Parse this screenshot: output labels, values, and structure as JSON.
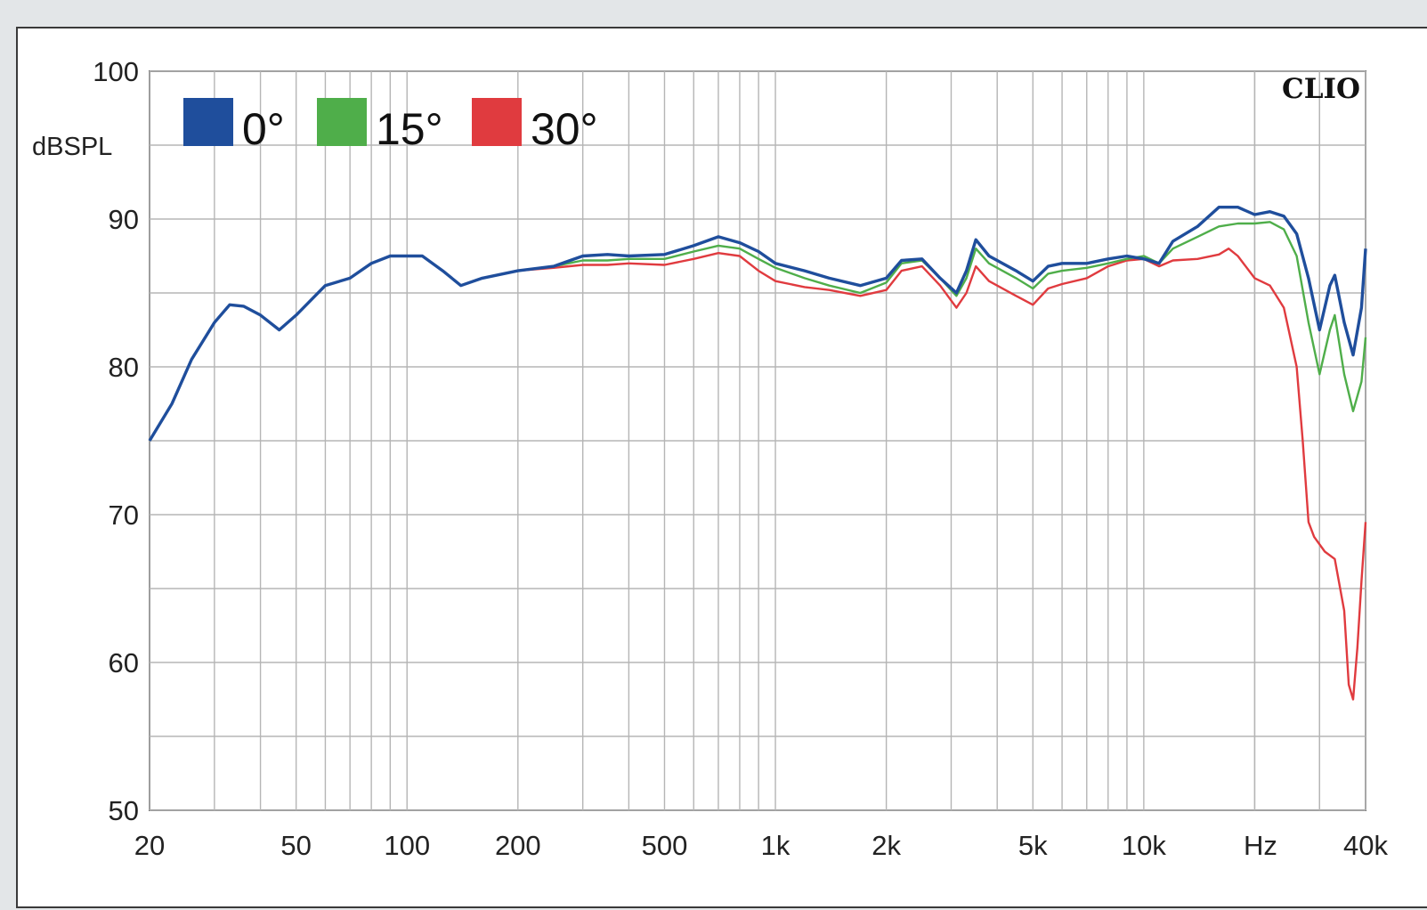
{
  "chart_data": {
    "type": "line",
    "brand": "CLIO",
    "ylabel": "dBSPL",
    "xunit": "Hz",
    "xscale": "log",
    "xlim": [
      20,
      40000
    ],
    "ylim": [
      50,
      100
    ],
    "grid": true,
    "legend_position": "top-left",
    "yticks": [
      {
        "value": 100,
        "label": "100"
      },
      {
        "value": 90,
        "label": "90"
      },
      {
        "value": 80,
        "label": "80"
      },
      {
        "value": 70,
        "label": "70"
      },
      {
        "value": 60,
        "label": "60"
      },
      {
        "value": 50,
        "label": "50"
      }
    ],
    "xticks": [
      {
        "value": 20,
        "label": "20"
      },
      {
        "value": 50,
        "label": "50"
      },
      {
        "value": 100,
        "label": "100"
      },
      {
        "value": 200,
        "label": "200"
      },
      {
        "value": 500,
        "label": "500"
      },
      {
        "value": 1000,
        "label": "1k"
      },
      {
        "value": 2000,
        "label": "2k"
      },
      {
        "value": 5000,
        "label": "5k"
      },
      {
        "value": 10000,
        "label": "10k"
      },
      {
        "value": 40000,
        "label": "40k"
      }
    ],
    "series": [
      {
        "name": "0°",
        "color": "#1f4e9c",
        "points": [
          [
            20,
            75
          ],
          [
            23,
            77.5
          ],
          [
            26,
            80.5
          ],
          [
            30,
            83
          ],
          [
            33,
            84.2
          ],
          [
            36,
            84.1
          ],
          [
            40,
            83.5
          ],
          [
            45,
            82.5
          ],
          [
            50,
            83.5
          ],
          [
            60,
            85.5
          ],
          [
            70,
            86
          ],
          [
            80,
            87
          ],
          [
            90,
            87.5
          ],
          [
            100,
            87.5
          ],
          [
            110,
            87.5
          ],
          [
            125,
            86.5
          ],
          [
            140,
            85.5
          ],
          [
            160,
            86
          ],
          [
            200,
            86.5
          ],
          [
            250,
            86.8
          ],
          [
            300,
            87.5
          ],
          [
            350,
            87.6
          ],
          [
            400,
            87.5
          ],
          [
            500,
            87.6
          ],
          [
            600,
            88.2
          ],
          [
            700,
            88.8
          ],
          [
            800,
            88.4
          ],
          [
            900,
            87.8
          ],
          [
            1000,
            87.0
          ],
          [
            1200,
            86.5
          ],
          [
            1400,
            86.0
          ],
          [
            1700,
            85.5
          ],
          [
            2000,
            86.0
          ],
          [
            2200,
            87.2
          ],
          [
            2500,
            87.3
          ],
          [
            2800,
            86.0
          ],
          [
            3100,
            85.0
          ],
          [
            3300,
            86.5
          ],
          [
            3500,
            88.6
          ],
          [
            3800,
            87.5
          ],
          [
            4500,
            86.5
          ],
          [
            5000,
            85.8
          ],
          [
            5500,
            86.8
          ],
          [
            6000,
            87.0
          ],
          [
            7000,
            87.0
          ],
          [
            8000,
            87.3
          ],
          [
            9000,
            87.5
          ],
          [
            10000,
            87.3
          ],
          [
            11000,
            87.0
          ],
          [
            12000,
            88.5
          ],
          [
            14000,
            89.5
          ],
          [
            16000,
            90.8
          ],
          [
            18000,
            90.8
          ],
          [
            20000,
            90.3
          ],
          [
            22000,
            90.5
          ],
          [
            24000,
            90.2
          ],
          [
            26000,
            89.0
          ],
          [
            28000,
            86.0
          ],
          [
            30000,
            82.5
          ],
          [
            32000,
            85.5
          ],
          [
            33000,
            86.2
          ],
          [
            35000,
            83.0
          ],
          [
            37000,
            80.8
          ],
          [
            39000,
            84.0
          ],
          [
            40000,
            88.0
          ]
        ]
      },
      {
        "name": "15°",
        "color": "#4fae4a",
        "points": [
          [
            20,
            75
          ],
          [
            23,
            77.5
          ],
          [
            26,
            80.5
          ],
          [
            30,
            83
          ],
          [
            33,
            84.2
          ],
          [
            36,
            84.1
          ],
          [
            40,
            83.5
          ],
          [
            45,
            82.5
          ],
          [
            50,
            83.5
          ],
          [
            60,
            85.5
          ],
          [
            70,
            86
          ],
          [
            80,
            87
          ],
          [
            90,
            87.5
          ],
          [
            100,
            87.5
          ],
          [
            110,
            87.5
          ],
          [
            125,
            86.5
          ],
          [
            140,
            85.5
          ],
          [
            160,
            86
          ],
          [
            200,
            86.5
          ],
          [
            250,
            86.8
          ],
          [
            300,
            87.2
          ],
          [
            350,
            87.2
          ],
          [
            400,
            87.3
          ],
          [
            500,
            87.3
          ],
          [
            600,
            87.8
          ],
          [
            700,
            88.2
          ],
          [
            800,
            88.0
          ],
          [
            900,
            87.3
          ],
          [
            1000,
            86.7
          ],
          [
            1200,
            86.0
          ],
          [
            1400,
            85.5
          ],
          [
            1700,
            85.0
          ],
          [
            2000,
            85.7
          ],
          [
            2200,
            87.0
          ],
          [
            2500,
            87.2
          ],
          [
            2800,
            86.0
          ],
          [
            3100,
            84.8
          ],
          [
            3300,
            86.0
          ],
          [
            3500,
            88.0
          ],
          [
            3800,
            87.0
          ],
          [
            4500,
            86.0
          ],
          [
            5000,
            85.3
          ],
          [
            5500,
            86.3
          ],
          [
            6000,
            86.5
          ],
          [
            7000,
            86.7
          ],
          [
            8000,
            87.0
          ],
          [
            9000,
            87.3
          ],
          [
            10000,
            87.5
          ],
          [
            11000,
            87.0
          ],
          [
            12000,
            88.0
          ],
          [
            14000,
            88.8
          ],
          [
            16000,
            89.5
          ],
          [
            18000,
            89.7
          ],
          [
            20000,
            89.7
          ],
          [
            22000,
            89.8
          ],
          [
            24000,
            89.3
          ],
          [
            26000,
            87.5
          ],
          [
            28000,
            83.0
          ],
          [
            30000,
            79.5
          ],
          [
            32000,
            82.5
          ],
          [
            33000,
            83.5
          ],
          [
            35000,
            79.5
          ],
          [
            37000,
            77.0
          ],
          [
            39000,
            79.0
          ],
          [
            40000,
            82.0
          ]
        ]
      },
      {
        "name": "30°",
        "color": "#e03b3f",
        "points": [
          [
            20,
            75
          ],
          [
            23,
            77.5
          ],
          [
            26,
            80.5
          ],
          [
            30,
            83
          ],
          [
            33,
            84.2
          ],
          [
            36,
            84.1
          ],
          [
            40,
            83.5
          ],
          [
            45,
            82.5
          ],
          [
            50,
            83.5
          ],
          [
            60,
            85.5
          ],
          [
            70,
            86
          ],
          [
            80,
            87
          ],
          [
            90,
            87.5
          ],
          [
            100,
            87.5
          ],
          [
            110,
            87.5
          ],
          [
            125,
            86.5
          ],
          [
            140,
            85.5
          ],
          [
            160,
            86
          ],
          [
            200,
            86.5
          ],
          [
            250,
            86.7
          ],
          [
            300,
            86.9
          ],
          [
            350,
            86.9
          ],
          [
            400,
            87.0
          ],
          [
            500,
            86.9
          ],
          [
            600,
            87.3
          ],
          [
            700,
            87.7
          ],
          [
            800,
            87.5
          ],
          [
            900,
            86.5
          ],
          [
            1000,
            85.8
          ],
          [
            1200,
            85.4
          ],
          [
            1400,
            85.2
          ],
          [
            1700,
            84.8
          ],
          [
            2000,
            85.2
          ],
          [
            2200,
            86.5
          ],
          [
            2500,
            86.8
          ],
          [
            2800,
            85.5
          ],
          [
            3100,
            84.0
          ],
          [
            3300,
            85.0
          ],
          [
            3500,
            86.8
          ],
          [
            3800,
            85.8
          ],
          [
            4500,
            84.8
          ],
          [
            5000,
            84.2
          ],
          [
            5500,
            85.3
          ],
          [
            6000,
            85.6
          ],
          [
            7000,
            86.0
          ],
          [
            8000,
            86.8
          ],
          [
            9000,
            87.2
          ],
          [
            10000,
            87.3
          ],
          [
            11000,
            86.8
          ],
          [
            12000,
            87.2
          ],
          [
            14000,
            87.3
          ],
          [
            16000,
            87.6
          ],
          [
            17000,
            88.0
          ],
          [
            18000,
            87.5
          ],
          [
            20000,
            86.0
          ],
          [
            22000,
            85.5
          ],
          [
            24000,
            84.0
          ],
          [
            26000,
            80.0
          ],
          [
            27000,
            75.0
          ],
          [
            28000,
            69.5
          ],
          [
            29000,
            68.5
          ],
          [
            31000,
            67.5
          ],
          [
            33000,
            67.0
          ],
          [
            35000,
            63.5
          ],
          [
            36000,
            58.5
          ],
          [
            37000,
            57.5
          ],
          [
            38000,
            61.0
          ],
          [
            39000,
            65.5
          ],
          [
            40000,
            69.5
          ]
        ]
      }
    ]
  }
}
